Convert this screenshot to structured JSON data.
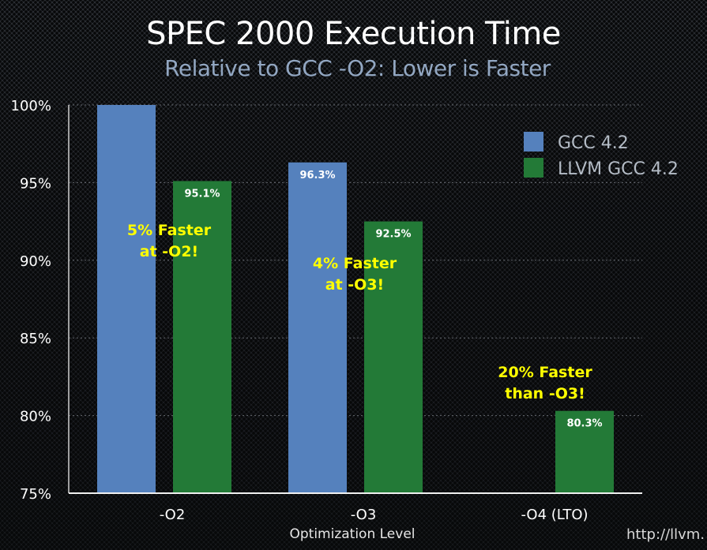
{
  "chart_data": {
    "type": "bar",
    "title": "SPEC 2000 Execution Time",
    "subtitle": "Relative to GCC -O2: Lower is Faster",
    "xlabel": "Optimization Level",
    "ylabel": "",
    "ylim": [
      75,
      100
    ],
    "yticks": [
      75,
      80,
      85,
      90,
      95,
      100
    ],
    "ytick_labels": [
      "75%",
      "80%",
      "85%",
      "90%",
      "95%",
      "100%"
    ],
    "grid": true,
    "categories": [
      "-O2",
      "-O3",
      "-O4 (LTO)"
    ],
    "series": [
      {
        "name": "GCC 4.2",
        "color": "#5581bd",
        "values": [
          100,
          96.3,
          null
        ],
        "labels": [
          null,
          "96.3%",
          null
        ]
      },
      {
        "name": "LLVM GCC 4.2",
        "color": "#237a37",
        "values": [
          95.1,
          92.5,
          80.3
        ],
        "labels": [
          "95.1%",
          "92.5%",
          "80.3%"
        ]
      }
    ],
    "legend": {
      "position": "top-right"
    },
    "annotations": [
      {
        "lines": [
          "5% Faster",
          "at -O2!"
        ],
        "category": "-O2"
      },
      {
        "lines": [
          "4% Faster",
          "at -O3!"
        ],
        "category": "-O3"
      },
      {
        "lines": [
          "20% Faster",
          "than -O3!"
        ],
        "category": "-O4 (LTO)"
      }
    ],
    "source": "http://llvm."
  },
  "colors": {
    "annotation": "#ffff00",
    "subtitle": "#92a7c2"
  }
}
